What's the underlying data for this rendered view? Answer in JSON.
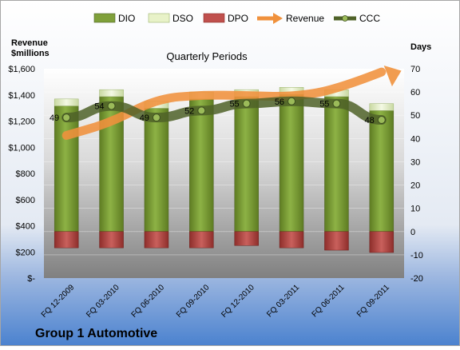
{
  "chart_data": {
    "type": "bar",
    "title": "Quarterly Periods",
    "company": "Group 1 Automotive",
    "left_axis_label_line1": "Revenue",
    "left_axis_label_line2": "$millions",
    "right_axis_label": "Days",
    "left_ylim": [
      0,
      1600
    ],
    "left_ticks": [
      "$-",
      "$200",
      "$400",
      "$600",
      "$800",
      "$1,000",
      "$1,200",
      "$1,400",
      "$1,600"
    ],
    "right_ylim": [
      -20,
      70
    ],
    "right_ticks": [
      "-20",
      "-10",
      "0",
      "10",
      "20",
      "30",
      "40",
      "50",
      "60",
      "70"
    ],
    "categories": [
      "FQ 12-2009",
      "FQ 03-2010",
      "FQ 06-2010",
      "FQ 09-2010",
      "FQ 12-2010",
      "FQ 03-2011",
      "FQ 06-2011",
      "FQ 09-2011"
    ],
    "legend": [
      "DIO",
      "DSO",
      "DPO",
      "Revenue",
      "CCC"
    ],
    "legend_position": "top",
    "series": [
      {
        "name": "DIO",
        "axis": "right",
        "stack": "positive",
        "values": [
          54,
          58,
          53,
          57,
          58,
          59,
          58,
          52
        ],
        "color": "#7FA03A"
      },
      {
        "name": "DSO",
        "axis": "right",
        "stack": "positive",
        "values": [
          3,
          3,
          3,
          3,
          3,
          3,
          3,
          3
        ],
        "color": "#E8F2C8"
      },
      {
        "name": "DPO",
        "axis": "right",
        "stack": "negative",
        "values": [
          -7,
          -7,
          -7,
          -7,
          -6,
          -7,
          -8,
          -9
        ],
        "color": "#C0504D"
      },
      {
        "name": "Revenue",
        "axis": "left",
        "values": [
          1090,
          1190,
          1370,
          1400,
          1395,
          1385,
          1440,
          1575
        ],
        "color": "#F0913C"
      },
      {
        "name": "CCC",
        "axis": "right",
        "values": [
          49,
          54,
          49,
          52,
          55,
          56,
          55,
          48
        ],
        "labels": [
          "49",
          "54",
          "49",
          "52",
          "55",
          "56",
          "55",
          "48"
        ],
        "color": "#4F6228"
      }
    ]
  }
}
